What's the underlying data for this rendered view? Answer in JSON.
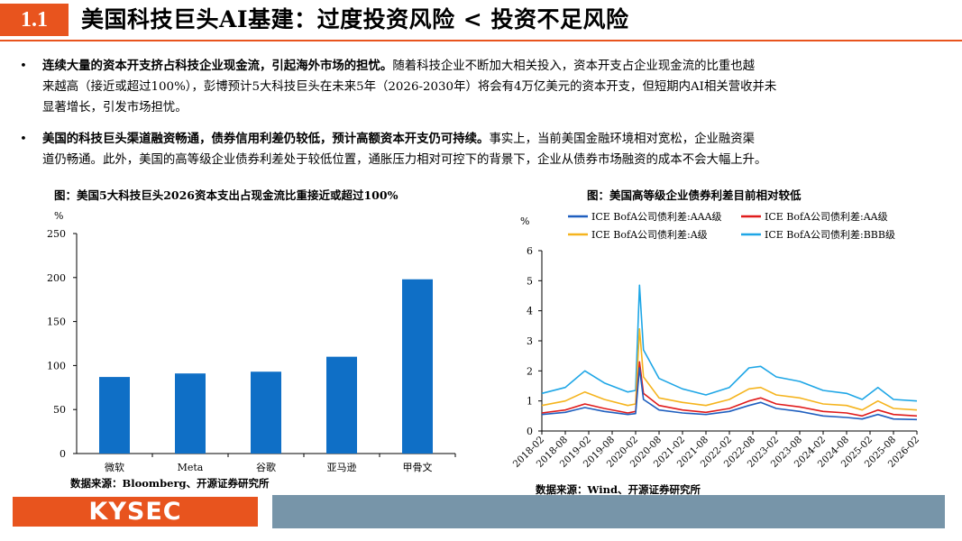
{
  "header": {
    "number": "1.1",
    "title": "美国科技巨头AI基建：过度投资风险 < 投资不足风险"
  },
  "bullets": [
    {
      "bold": "连续大量的资本开支挤占科技企业现金流，引起海外市场的担忧。",
      "line1": "随着科技企业不断加大相关投入，资本开支占企业现金流的比重也越",
      "line2": "来越高（接近或超过100%），彭博预计5大科技巨头在未来5年（2026-2030年）将会有4万亿美元的资本开支，但短期内AI相关营收并未",
      "line3": "显著增长，引发市场担忧。"
    },
    {
      "bold": "美国的科技巨头渠道融资畅通，债券信用利差仍较低，预计高额资本开支仍可持续。",
      "line1": "事实上，当前美国金融环境相对宽松，企业融资渠",
      "line2": "道仍畅通。此外，美国的高等级企业债券利差处于较低位置，通胀压力相对可控下的背景下，企业从债券市场融资的成本不会大幅上升。"
    }
  ],
  "bullet_symbol": "•",
  "left_chart_title": "图：美国5大科技巨头2026资本支出占现金流比重接近或超过100%",
  "right_chart_title": "图：美国高等级企业债券利差目前相对较低",
  "left_source": "数据来源：Bloomberg、开源证券研究所",
  "right_source": "数据来源：Wind、开源证券研究所",
  "footer": {
    "logo_text": "KYSEC"
  },
  "colors": {
    "accent": "#e8541e",
    "bar": "#0f6fc6",
    "footer_bar": "#7795a9"
  },
  "chart_data": [
    {
      "type": "bar",
      "unit": "%",
      "categories": [
        "微软",
        "Meta",
        "谷歌",
        "亚马逊",
        "甲骨文"
      ],
      "values": [
        87,
        91,
        93,
        110,
        198
      ],
      "ylim": [
        0,
        250
      ],
      "yticks": [
        0,
        50,
        100,
        150,
        200,
        250
      ],
      "grid": false,
      "color": "#0f6fc6"
    },
    {
      "type": "line",
      "unit": "%",
      "ylim": [
        0,
        6
      ],
      "yticks": [
        0,
        1,
        2,
        3,
        4,
        5,
        6
      ],
      "grid": false,
      "legend_position": "top",
      "x_ticks": [
        "2018-02",
        "2018-08",
        "2019-02",
        "2019-08",
        "2020-02",
        "2020-08",
        "2021-02",
        "2021-08",
        "2022-02",
        "2022-08",
        "2023-02",
        "2023-08",
        "2024-02",
        "2024-08",
        "2025-02",
        "2025-08",
        "2026-02"
      ],
      "series": [
        {
          "name": "ICE BofA公司债利差:AAA级",
          "color": "#1f5fbf",
          "points": [
            [
              "2018-02",
              0.55
            ],
            [
              "2018-08",
              0.62
            ],
            [
              "2019-01",
              0.78
            ],
            [
              "2019-06",
              0.65
            ],
            [
              "2019-12",
              0.55
            ],
            [
              "2020-02",
              0.58
            ],
            [
              "2020-03",
              2.1
            ],
            [
              "2020-04",
              1.05
            ],
            [
              "2020-08",
              0.7
            ],
            [
              "2021-02",
              0.6
            ],
            [
              "2021-08",
              0.55
            ],
            [
              "2022-02",
              0.65
            ],
            [
              "2022-07",
              0.85
            ],
            [
              "2022-10",
              0.95
            ],
            [
              "2023-02",
              0.75
            ],
            [
              "2023-08",
              0.65
            ],
            [
              "2024-02",
              0.5
            ],
            [
              "2024-08",
              0.45
            ],
            [
              "2024-12",
              0.4
            ],
            [
              "2025-04",
              0.55
            ],
            [
              "2025-08",
              0.4
            ],
            [
              "2026-02",
              0.38
            ]
          ]
        },
        {
          "name": "ICE BofA公司债利差:AA级",
          "color": "#e01b1b",
          "points": [
            [
              "2018-02",
              0.6
            ],
            [
              "2018-08",
              0.7
            ],
            [
              "2019-01",
              0.9
            ],
            [
              "2019-06",
              0.75
            ],
            [
              "2019-12",
              0.6
            ],
            [
              "2020-02",
              0.65
            ],
            [
              "2020-03",
              2.3
            ],
            [
              "2020-04",
              1.25
            ],
            [
              "2020-08",
              0.85
            ],
            [
              "2021-02",
              0.7
            ],
            [
              "2021-08",
              0.62
            ],
            [
              "2022-02",
              0.75
            ],
            [
              "2022-07",
              1.0
            ],
            [
              "2022-10",
              1.1
            ],
            [
              "2023-02",
              0.9
            ],
            [
              "2023-08",
              0.8
            ],
            [
              "2024-02",
              0.65
            ],
            [
              "2024-08",
              0.6
            ],
            [
              "2024-12",
              0.5
            ],
            [
              "2025-04",
              0.7
            ],
            [
              "2025-08",
              0.55
            ],
            [
              "2026-02",
              0.5
            ]
          ]
        },
        {
          "name": "ICE BofA公司债利差:A级",
          "color": "#f5b41e",
          "points": [
            [
              "2018-02",
              0.85
            ],
            [
              "2018-08",
              1.0
            ],
            [
              "2019-01",
              1.3
            ],
            [
              "2019-06",
              1.05
            ],
            [
              "2019-12",
              0.85
            ],
            [
              "2020-02",
              0.9
            ],
            [
              "2020-03",
              3.4
            ],
            [
              "2020-04",
              1.8
            ],
            [
              "2020-08",
              1.1
            ],
            [
              "2021-02",
              0.95
            ],
            [
              "2021-08",
              0.85
            ],
            [
              "2022-02",
              1.05
            ],
            [
              "2022-07",
              1.4
            ],
            [
              "2022-10",
              1.45
            ],
            [
              "2023-02",
              1.2
            ],
            [
              "2023-08",
              1.1
            ],
            [
              "2024-02",
              0.9
            ],
            [
              "2024-08",
              0.85
            ],
            [
              "2024-12",
              0.7
            ],
            [
              "2025-04",
              1.0
            ],
            [
              "2025-08",
              0.75
            ],
            [
              "2026-02",
              0.7
            ]
          ]
        },
        {
          "name": "ICE BofA公司债利差:BBB级",
          "color": "#1ea6e6",
          "points": [
            [
              "2018-02",
              1.25
            ],
            [
              "2018-08",
              1.45
            ],
            [
              "2019-01",
              2.0
            ],
            [
              "2019-06",
              1.6
            ],
            [
              "2019-12",
              1.3
            ],
            [
              "2020-02",
              1.35
            ],
            [
              "2020-03",
              4.85
            ],
            [
              "2020-04",
              2.7
            ],
            [
              "2020-08",
              1.75
            ],
            [
              "2021-02",
              1.4
            ],
            [
              "2021-08",
              1.2
            ],
            [
              "2022-02",
              1.45
            ],
            [
              "2022-07",
              2.1
            ],
            [
              "2022-10",
              2.15
            ],
            [
              "2023-02",
              1.8
            ],
            [
              "2023-08",
              1.65
            ],
            [
              "2024-02",
              1.35
            ],
            [
              "2024-08",
              1.25
            ],
            [
              "2024-12",
              1.05
            ],
            [
              "2025-04",
              1.45
            ],
            [
              "2025-08",
              1.05
            ],
            [
              "2026-02",
              1.0
            ]
          ]
        }
      ]
    }
  ]
}
